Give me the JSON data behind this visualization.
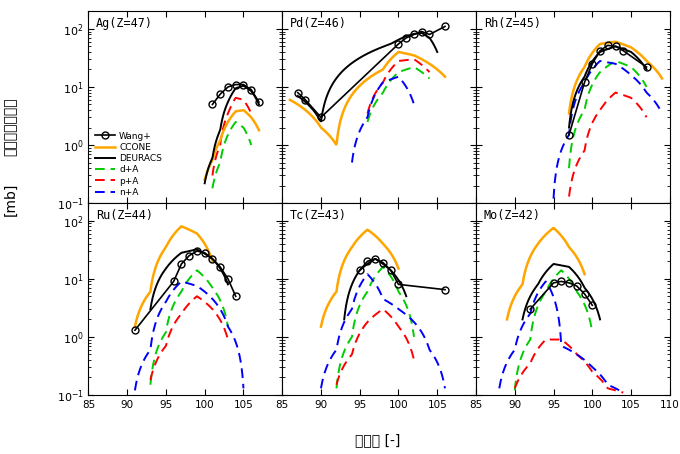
{
  "panels": [
    {
      "label": "Ag(Z=47)",
      "row": 0,
      "col": 0,
      "xlim": [
        85,
        110
      ],
      "xticks": [
        85,
        90,
        95,
        100,
        105
      ],
      "wang_x": [
        101,
        102,
        103,
        104,
        105,
        106,
        107
      ],
      "wang_y": [
        5.0,
        7.5,
        10.0,
        11.0,
        11.0,
        9.0,
        5.5
      ],
      "ccone_x": [
        100,
        101,
        102,
        103,
        104,
        105,
        106,
        107
      ],
      "ccone_y": [
        0.25,
        0.55,
        1.2,
        2.5,
        3.8,
        4.0,
        3.0,
        1.8
      ],
      "deuracs_x": [
        100,
        101,
        102,
        103,
        104,
        105,
        106,
        107
      ],
      "deuracs_y": [
        0.22,
        0.6,
        1.8,
        5.5,
        9.5,
        10.5,
        8.5,
        5.0
      ],
      "dA_x": [
        101,
        102,
        103,
        104,
        105,
        106
      ],
      "dA_y": [
        0.18,
        0.5,
        1.5,
        2.5,
        2.0,
        1.0
      ],
      "pA_x": [
        101,
        102,
        103,
        104,
        105,
        106
      ],
      "pA_y": [
        0.3,
        1.0,
        3.5,
        6.5,
        6.0,
        3.5
      ],
      "nA_x": [],
      "nA_y": []
    },
    {
      "label": "Pd(Z=46)",
      "row": 0,
      "col": 1,
      "xlim": [
        85,
        110
      ],
      "xticks": [
        85,
        90,
        95,
        100,
        105
      ],
      "wang_x": [
        87,
        88,
        90,
        100,
        101,
        102,
        103,
        104,
        106
      ],
      "wang_y": [
        8.0,
        6.0,
        3.0,
        55.0,
        70.0,
        80.0,
        90.0,
        80.0,
        110.0
      ],
      "ccone_x": [
        86,
        88,
        90,
        92,
        98,
        100,
        102,
        104,
        106
      ],
      "ccone_y": [
        6.0,
        4.0,
        2.0,
        1.0,
        20.0,
        40.0,
        35.0,
        25.0,
        15.0
      ],
      "deuracs_x": [
        87,
        88,
        90,
        99,
        100,
        101,
        102,
        103,
        104,
        105
      ],
      "deuracs_y": [
        7.0,
        5.5,
        2.5,
        55.0,
        65.0,
        75.0,
        82.0,
        85.0,
        70.0,
        40.0
      ],
      "dA_x": [
        96,
        98,
        100,
        102,
        104
      ],
      "dA_y": [
        2.5,
        8.0,
        18.0,
        22.0,
        14.0
      ],
      "pA_x": [
        96,
        98,
        100,
        102,
        104
      ],
      "pA_y": [
        3.5,
        12.0,
        28.0,
        30.0,
        18.0
      ],
      "nA_x": [
        94,
        96,
        98,
        100,
        102
      ],
      "nA_y": [
        0.5,
        3.0,
        12.0,
        15.0,
        5.0
      ]
    },
    {
      "label": "Rh(Z=45)",
      "row": 0,
      "col": 2,
      "xlim": [
        85,
        110
      ],
      "xticks": [
        85,
        90,
        95,
        100,
        105,
        110
      ],
      "wang_x": [
        97,
        99,
        100,
        101,
        102,
        103,
        104,
        107
      ],
      "wang_y": [
        1.5,
        12.0,
        25.0,
        42.0,
        52.0,
        50.0,
        42.0,
        22.0
      ],
      "ccone_x": [
        97,
        99,
        101,
        103,
        105,
        107,
        109
      ],
      "ccone_y": [
        3.5,
        22.0,
        55.0,
        60.0,
        48.0,
        28.0,
        14.0
      ],
      "deuracs_x": [
        97,
        99,
        101,
        103,
        105,
        107
      ],
      "deuracs_y": [
        2.0,
        15.0,
        40.0,
        50.0,
        40.0,
        20.0
      ],
      "dA_x": [
        97,
        99,
        101,
        103,
        105,
        107
      ],
      "dA_y": [
        0.4,
        4.0,
        18.0,
        28.0,
        22.0,
        10.0
      ],
      "pA_x": [
        97,
        99,
        101,
        103,
        105,
        107
      ],
      "pA_y": [
        0.13,
        0.8,
        4.0,
        8.0,
        6.5,
        3.0
      ],
      "nA_x": [
        95,
        97,
        99,
        101,
        103,
        105,
        107,
        109
      ],
      "nA_y": [
        0.12,
        1.5,
        12.0,
        28.0,
        25.0,
        16.0,
        8.0,
        3.5
      ]
    },
    {
      "label": "Ru(Z=44)",
      "row": 1,
      "col": 0,
      "xlim": [
        85,
        110
      ],
      "xticks": [
        85,
        90,
        95,
        100,
        105
      ],
      "wang_x": [
        91,
        96,
        97,
        98,
        99,
        100,
        101,
        102,
        103,
        104
      ],
      "wang_y": [
        1.3,
        9.0,
        18.0,
        25.0,
        30.0,
        28.0,
        22.0,
        16.0,
        10.0,
        5.0
      ],
      "ccone_x": [
        91,
        93,
        95,
        97,
        99,
        101
      ],
      "ccone_y": [
        1.5,
        6.0,
        35.0,
        80.0,
        60.0,
        20.0
      ],
      "deuracs_x": [
        93,
        95,
        97,
        99,
        101,
        103
      ],
      "deuracs_y": [
        3.0,
        15.0,
        28.0,
        32.0,
        22.0,
        8.0
      ],
      "dA_x": [
        93,
        95,
        97,
        99,
        101,
        103
      ],
      "dA_y": [
        0.15,
        1.2,
        6.0,
        14.0,
        7.0,
        1.5
      ],
      "pA_x": [
        93,
        95,
        97,
        99,
        101,
        103
      ],
      "pA_y": [
        0.18,
        0.7,
        2.5,
        5.0,
        3.0,
        0.9
      ],
      "nA_x": [
        91,
        93,
        95,
        97,
        99,
        101,
        103,
        105
      ],
      "nA_y": [
        0.12,
        0.6,
        4.0,
        9.0,
        7.5,
        4.5,
        1.5,
        0.13
      ]
    },
    {
      "label": "Tc(Z=43)",
      "row": 1,
      "col": 1,
      "xlim": [
        85,
        110
      ],
      "xticks": [
        85,
        90,
        95,
        100,
        105
      ],
      "wang_x": [
        95,
        96,
        97,
        98,
        99,
        100,
        106
      ],
      "wang_y": [
        14.0,
        20.0,
        22.0,
        19.0,
        14.0,
        8.0,
        6.5
      ],
      "ccone_x": [
        90,
        92,
        94,
        96,
        98,
        100
      ],
      "ccone_y": [
        1.5,
        6.0,
        35.0,
        70.0,
        40.0,
        15.0
      ],
      "deuracs_x": [
        93,
        95,
        97,
        99,
        101
      ],
      "deuracs_y": [
        2.0,
        14.0,
        22.0,
        14.0,
        5.0
      ],
      "dA_x": [
        92,
        94,
        96,
        98,
        100,
        102
      ],
      "dA_y": [
        0.13,
        1.0,
        6.0,
        16.0,
        6.0,
        1.0
      ],
      "pA_x": [
        92,
        94,
        96,
        98,
        100,
        102
      ],
      "pA_y": [
        0.15,
        0.5,
        1.8,
        3.0,
        1.5,
        0.4
      ],
      "nA_x": [
        90,
        92,
        94,
        96,
        98,
        100,
        102,
        104,
        106
      ],
      "nA_y": [
        0.13,
        0.6,
        3.0,
        12.0,
        4.5,
        3.0,
        1.8,
        0.6,
        0.13
      ]
    },
    {
      "label": "Mo(Z=42)",
      "row": 1,
      "col": 2,
      "xlim": [
        85,
        110
      ],
      "xticks": [
        85,
        90,
        95,
        100,
        105,
        110
      ],
      "wang_x": [
        92,
        95,
        96,
        97,
        98,
        99,
        100
      ],
      "wang_y": [
        3.0,
        8.5,
        9.0,
        8.5,
        7.5,
        5.5,
        3.5
      ],
      "ccone_x": [
        89,
        91,
        93,
        95,
        97,
        99
      ],
      "ccone_y": [
        2.0,
        8.0,
        40.0,
        75.0,
        35.0,
        12.0
      ],
      "deuracs_x": [
        91,
        93,
        95,
        97,
        99,
        101
      ],
      "deuracs_y": [
        2.0,
        8.0,
        18.0,
        16.0,
        7.0,
        2.0
      ],
      "dA_x": [
        90,
        92,
        94,
        96,
        98,
        100
      ],
      "dA_y": [
        0.12,
        0.9,
        6.0,
        14.0,
        6.0,
        1.2
      ],
      "pA_x": [
        90,
        92,
        94,
        96,
        98,
        100,
        102,
        104
      ],
      "pA_y": [
        0.13,
        0.35,
        0.9,
        0.9,
        0.5,
        0.25,
        0.13,
        0.11
      ],
      "nA_x": [
        88,
        90,
        92,
        94,
        96,
        98,
        100,
        102,
        104
      ],
      "nA_y": [
        0.13,
        0.6,
        2.5,
        9.0,
        0.7,
        0.5,
        0.3,
        0.15,
        0.11
      ]
    }
  ],
  "ylim": [
    0.1,
    200
  ],
  "yticks": [
    0.1,
    1.0,
    10.0,
    100.0
  ],
  "colors": {
    "wang": "#000000",
    "ccone": "#FFA500",
    "deuracs": "#000000",
    "dA": "#00CC00",
    "pA": "#FF0000",
    "nA": "#0000FF"
  },
  "ylabel_lines": [
    "核",
    "種",
    "生",
    "成",
    "断",
    "面",
    "積",
    "",
    "[mb]"
  ],
  "xlabel": "質量数 [-]",
  "legend_labels": [
    "Wang+",
    "CCONE",
    "DEURACS",
    "d+A",
    "p+A",
    "n+A"
  ]
}
